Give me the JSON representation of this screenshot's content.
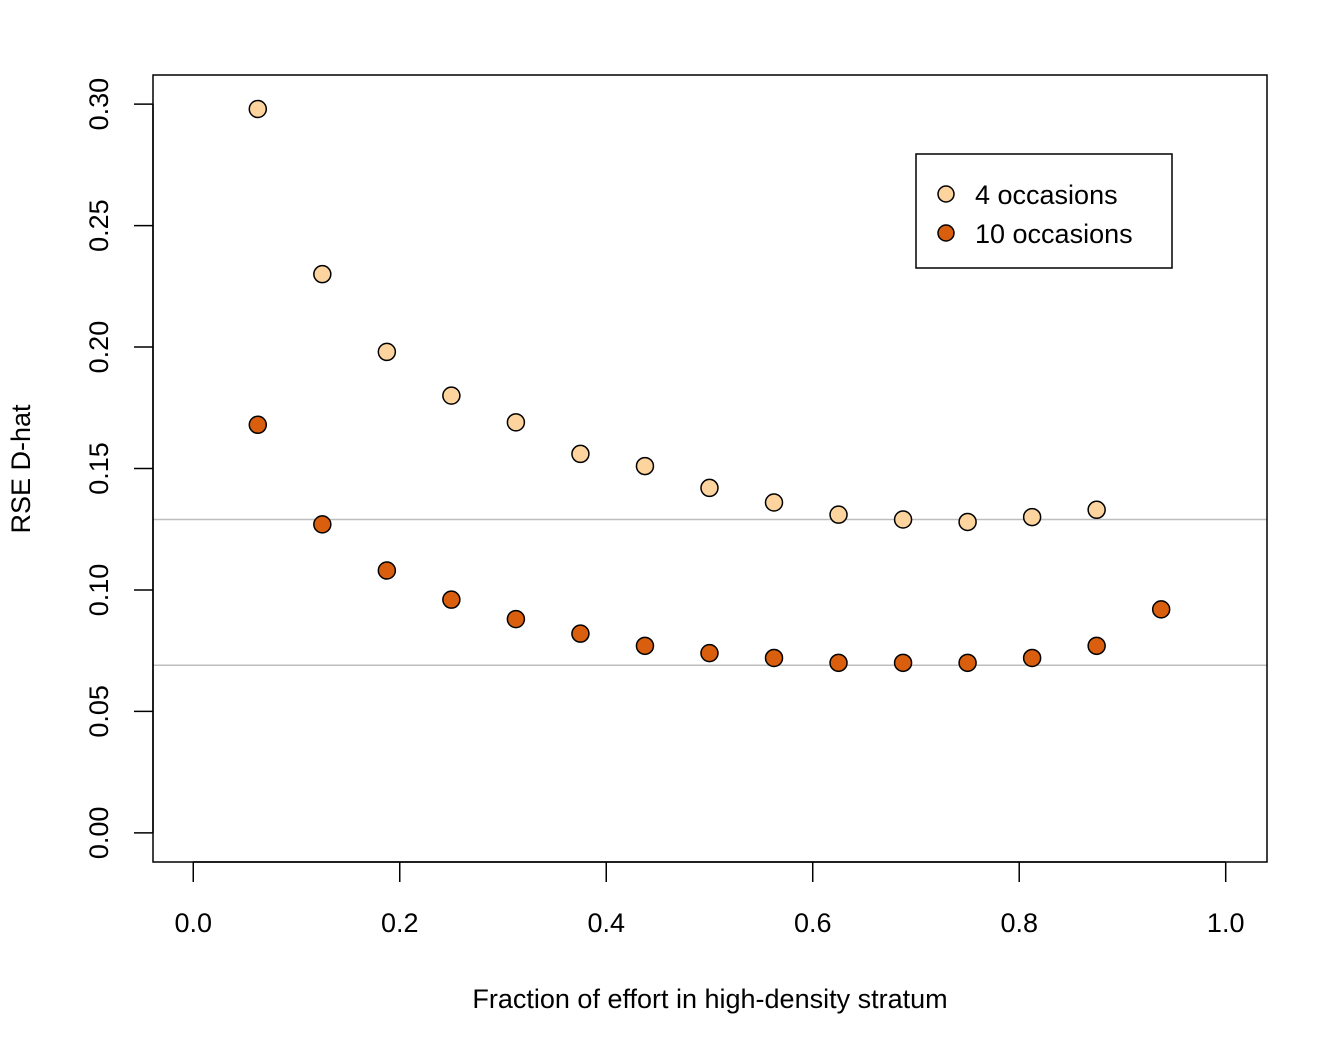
{
  "chart_data": {
    "type": "scatter",
    "xlabel": "Fraction of effort in high-density stratum",
    "ylabel": "RSE D-hat",
    "xlim": [
      -0.039,
      1.04
    ],
    "ylim": [
      -0.012,
      0.312
    ],
    "x_ticks": [
      "0.0",
      "0.2",
      "0.4",
      "0.6",
      "0.8",
      "1.0"
    ],
    "y_ticks": [
      "0.00",
      "0.05",
      "0.10",
      "0.15",
      "0.20",
      "0.25",
      "0.30"
    ],
    "grid": false,
    "legend_position": "top-right",
    "reference_lines": [
      0.129,
      0.069
    ],
    "reference_line_color": "#bebebe",
    "series": [
      {
        "name": "4 occasions",
        "color": "#fdd49e",
        "x": [
          0.0625,
          0.125,
          0.1875,
          0.25,
          0.3125,
          0.375,
          0.4375,
          0.5,
          0.5625,
          0.625,
          0.6875,
          0.75,
          0.8125,
          0.875
        ],
        "y": [
          0.298,
          0.23,
          0.198,
          0.18,
          0.169,
          0.156,
          0.151,
          0.142,
          0.136,
          0.131,
          0.129,
          0.128,
          0.13,
          0.133
        ]
      },
      {
        "name": "10 occasions",
        "color": "#d95f0e",
        "x": [
          0.0625,
          0.125,
          0.1875,
          0.25,
          0.3125,
          0.375,
          0.4375,
          0.5,
          0.5625,
          0.625,
          0.6875,
          0.75,
          0.8125,
          0.875,
          0.9375
        ],
        "y": [
          0.168,
          0.127,
          0.108,
          0.096,
          0.088,
          0.082,
          0.077,
          0.074,
          0.072,
          0.07,
          0.07,
          0.07,
          0.072,
          0.077,
          0.092
        ]
      }
    ]
  }
}
